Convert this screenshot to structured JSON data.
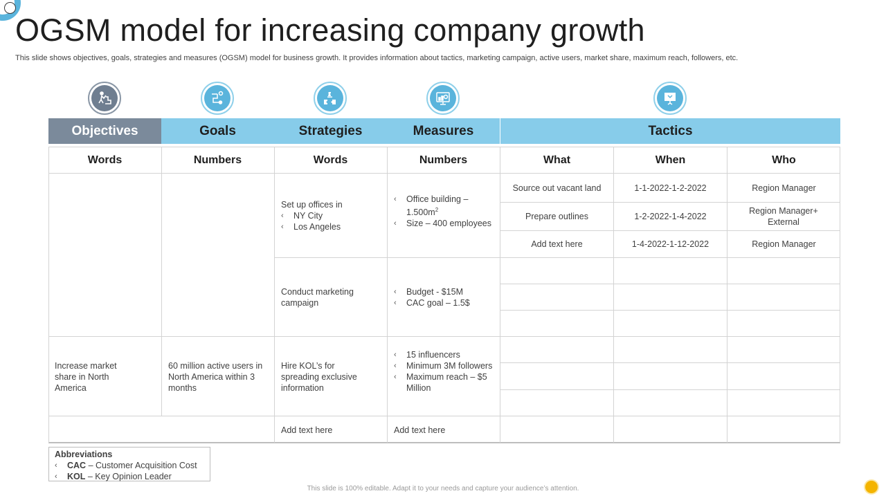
{
  "title": "OGSM model for increasing company growth",
  "subtitle": "This slide shows objectives, goals, strategies and measures (OGSM) model for business growth. It provides information about tactics, marketing campaign, active users, market share, maximum reach, followers, etc.",
  "headers": {
    "objectives": "Objectives",
    "goals": "Goals",
    "strategies": "Strategies",
    "measures": "Measures",
    "tactics": "Tactics"
  },
  "subheaders": [
    "Words",
    "Numbers",
    "Words",
    "Numbers",
    "What",
    "When",
    "Who"
  ],
  "bullet": "‹",
  "block1": {
    "strategy_intro": "Set up offices in",
    "strategy_items": [
      "NY City",
      "Los Angeles"
    ],
    "measure_items": [
      "Office building – 1.500m",
      "Size – 400 employees"
    ],
    "measure_sup": "2",
    "tactics": [
      {
        "what": "Source out vacant land",
        "when": "1-1-2022-1-2-2022",
        "who": "Region Manager"
      },
      {
        "what": "Prepare outlines",
        "when": "1-2-2022-1-4-2022",
        "who": "Region Manager+ External"
      },
      {
        "what": "Add text here",
        "when": "1-4-2022-1-12-2022",
        "who": "Region Manager"
      }
    ]
  },
  "block2": {
    "strategy": "Conduct marketing campaign",
    "measure_items": [
      "Budget - $15M",
      "CAC goal – 1.5$"
    ]
  },
  "block3": {
    "objective": "Increase market share in North America",
    "goal": "60 million active users in North America within 3 months",
    "strategy": "Hire KOL’s for spreading exclusive information",
    "measure_items": [
      "15 influencers",
      "Minimum 3M followers",
      "Maximum reach – $5 Million"
    ]
  },
  "block4": {
    "strategy": "Add text here",
    "measure": "Add text here"
  },
  "abbreviations": {
    "heading": "Abbreviations",
    "items": [
      {
        "abbr": "CAC",
        "text": "– Customer Acquisition Cost"
      },
      {
        "abbr": "KOL",
        "text": "– Key Opinion Leader"
      }
    ]
  },
  "footer": "This slide is 100% editable. Adapt it to your needs and capture your audience’s attention.",
  "colors": {
    "accent": "#87ccea",
    "objectives": "#7b8a9b",
    "icon_blue": "#5ab4dc"
  },
  "icons": [
    "objectives-icon",
    "goals-icon",
    "strategies-icon",
    "measures-icon",
    "tactics-icon"
  ]
}
